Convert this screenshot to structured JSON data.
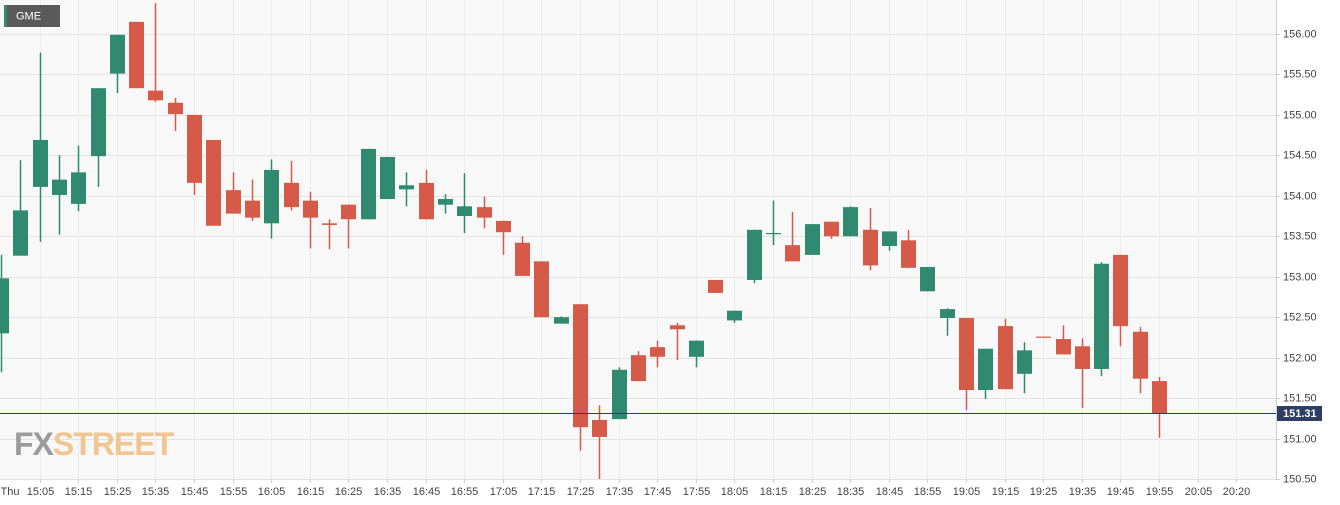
{
  "chart_data": {
    "type": "candlestick",
    "title": "GME",
    "watermark": [
      "FX",
      "STREET"
    ],
    "x": [
      "14:55",
      "15:00",
      "15:05",
      "15:10",
      "15:15",
      "15:20",
      "15:25",
      "15:30",
      "15:35",
      "15:40",
      "15:45",
      "15:50",
      "15:55",
      "16:00",
      "16:05",
      "16:10",
      "16:15",
      "16:20",
      "16:25",
      "16:30",
      "16:35",
      "16:40",
      "16:45",
      "16:50",
      "16:55",
      "17:00",
      "17:05",
      "17:10",
      "17:15",
      "17:20",
      "17:25",
      "17:30",
      "17:35",
      "17:40",
      "17:45",
      "17:50",
      "17:55",
      "18:00",
      "18:05",
      "18:10",
      "18:15",
      "18:20",
      "18:25",
      "18:30",
      "18:35",
      "18:40",
      "18:45",
      "18:50",
      "18:55",
      "19:00",
      "19:05",
      "19:10",
      "19:15",
      "19:20",
      "19:25",
      "19:30",
      "19:35",
      "19:40",
      "19:45",
      "19:50",
      "19:55"
    ],
    "open": [
      152.3,
      153.26,
      154.11,
      154.01,
      153.9,
      154.49,
      155.51,
      156.15,
      155.3,
      155.15,
      155.0,
      154.69,
      154.07,
      153.94,
      153.66,
      154.16,
      153.94,
      153.66,
      153.89,
      153.71,
      153.96,
      154.08,
      154.16,
      153.89,
      153.75,
      153.86,
      153.69,
      153.42,
      153.19,
      152.42,
      152.66,
      151.23,
      151.24,
      152.03,
      152.13,
      152.4,
      152.01,
      152.96,
      152.46,
      152.96,
      153.53,
      153.39,
      153.27,
      153.68,
      153.5,
      153.58,
      153.38,
      153.45,
      152.82,
      152.49,
      152.49,
      151.6,
      152.39,
      151.8,
      152.26,
      152.23,
      152.14,
      151.86,
      153.27,
      152.32,
      151.71
    ],
    "high": [
      153.27,
      154.44,
      155.77,
      154.5,
      154.62,
      155.33,
      155.99,
      156.15,
      156.38,
      155.21,
      155.0,
      154.69,
      154.29,
      154.2,
      154.45,
      154.43,
      154.05,
      153.71,
      153.89,
      154.58,
      154.48,
      154.29,
      154.32,
      154.02,
      154.28,
      153.99,
      153.69,
      153.5,
      153.19,
      152.51,
      152.66,
      151.41,
      151.88,
      152.08,
      152.21,
      152.43,
      152.21,
      152.96,
      152.58,
      153.58,
      153.94,
      153.8,
      153.65,
      153.68,
      153.87,
      153.85,
      153.56,
      153.58,
      153.12,
      152.61,
      152.49,
      152.11,
      152.48,
      152.19,
      152.26,
      152.4,
      152.24,
      153.18,
      153.27,
      152.38,
      151.76
    ],
    "low": [
      151.82,
      153.26,
      153.43,
      153.52,
      153.81,
      154.11,
      155.27,
      155.33,
      155.16,
      154.8,
      154.01,
      153.63,
      153.78,
      153.69,
      153.47,
      153.82,
      153.35,
      153.34,
      153.35,
      153.71,
      153.96,
      153.87,
      153.71,
      153.78,
      153.54,
      153.6,
      153.27,
      153.01,
      152.5,
      152.42,
      150.85,
      150.5,
      151.24,
      151.71,
      151.88,
      151.97,
      151.88,
      152.8,
      152.43,
      152.92,
      153.39,
      153.19,
      153.27,
      153.47,
      153.5,
      153.08,
      153.32,
      153.11,
      152.82,
      152.27,
      151.35,
      151.49,
      151.61,
      151.56,
      152.25,
      152.04,
      151.38,
      151.77,
      152.14,
      151.56,
      151.01
    ],
    "close": [
      152.98,
      153.82,
      154.69,
      154.2,
      154.29,
      155.33,
      155.99,
      155.33,
      155.18,
      155.01,
      154.16,
      153.63,
      153.78,
      153.73,
      154.32,
      153.86,
      153.73,
      153.64,
      153.71,
      154.58,
      154.48,
      154.13,
      153.71,
      153.96,
      153.87,
      153.73,
      153.55,
      153.01,
      152.5,
      152.5,
      151.14,
      151.02,
      151.85,
      151.71,
      152.01,
      152.35,
      152.21,
      152.8,
      152.58,
      153.58,
      153.54,
      153.19,
      153.65,
      153.5,
      153.86,
      153.14,
      153.56,
      153.11,
      153.12,
      152.6,
      151.6,
      152.11,
      151.61,
      152.09,
      152.25,
      152.04,
      151.86,
      153.16,
      152.39,
      151.74,
      151.31
    ],
    "up_color": "#2f8a6f",
    "down_color": "#d55a48",
    "last_price": 151.31,
    "ylim": [
      150.5,
      156.42
    ],
    "yticks": [
      {
        "value": 150.5,
        "label": "150.50"
      },
      {
        "value": 151,
        "label": "151.00"
      },
      {
        "value": 151.5,
        "label": "151.50"
      },
      {
        "value": 152,
        "label": "152.00"
      },
      {
        "value": 152.5,
        "label": "152.50"
      },
      {
        "value": 153,
        "label": "153.00"
      },
      {
        "value": 153.5,
        "label": "153.50"
      },
      {
        "value": 154,
        "label": "154.00"
      },
      {
        "value": 154.5,
        "label": "154.50"
      },
      {
        "value": 155,
        "label": "155.00"
      },
      {
        "value": 155.5,
        "label": "155.50"
      },
      {
        "value": 156,
        "label": "156.00"
      }
    ],
    "xtick_labels": [
      "Thu",
      "15:05",
      "15:15",
      "15:25",
      "15:35",
      "15:45",
      "15:55",
      "16:05",
      "16:15",
      "16:25",
      "16:35",
      "16:45",
      "16:55",
      "17:05",
      "17:15",
      "17:25",
      "17:35",
      "17:45",
      "17:55",
      "18:05",
      "18:15",
      "18:25",
      "18:35",
      "18:45",
      "18:55",
      "19:05",
      "19:15",
      "19:25",
      "19:35",
      "19:45",
      "19:55",
      "20:05",
      "20:20"
    ],
    "grid": true
  }
}
